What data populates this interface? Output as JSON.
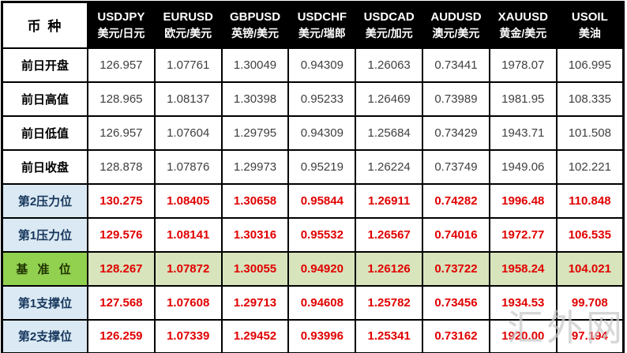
{
  "watermark": "汇外网",
  "colors": {
    "header_bg": "#000000",
    "header_text": "#FFFFFF",
    "border": "#000000",
    "label_text": "#000000",
    "plain_value_text": "#3F3F3F",
    "level_label_bg": "#DAE9F3",
    "level_label_text": "#17375D",
    "level_value_text": "#E10000",
    "pivot_label_bg": "#92D050",
    "pivot_label_text": "#1F3300",
    "pivot_row_bg": "#D7E4BC",
    "watermark_color": "#C9C9C9"
  },
  "chart_data": {
    "type": "table",
    "corner_label": "币 种",
    "columns": [
      {
        "symbol": "USDJPY",
        "name": "美元/日元"
      },
      {
        "symbol": "EURUSD",
        "name": "欧元/美元"
      },
      {
        "symbol": "GBPUSD",
        "name": "英镑/美元"
      },
      {
        "symbol": "USDCHF",
        "name": "美元/瑞郎"
      },
      {
        "symbol": "USDCAD",
        "name": "美元/加元"
      },
      {
        "symbol": "AUDUSD",
        "name": "澳元/美元"
      },
      {
        "symbol": "XAUUSD",
        "name": "黄金/美元"
      },
      {
        "symbol": "USOIL",
        "name": "美油"
      }
    ],
    "rows": [
      {
        "label": "前日开盘",
        "type": "plain",
        "values": [
          "126.957",
          "1.07761",
          "1.30049",
          "0.94309",
          "1.26063",
          "0.73441",
          "1978.07",
          "106.995"
        ]
      },
      {
        "label": "前日高值",
        "type": "plain",
        "values": [
          "128.965",
          "1.08137",
          "1.30398",
          "0.95233",
          "1.26469",
          "0.73989",
          "1981.95",
          "108.335"
        ]
      },
      {
        "label": "前日低值",
        "type": "plain",
        "values": [
          "126.957",
          "1.07604",
          "1.29795",
          "0.94309",
          "1.25684",
          "0.73429",
          "1943.71",
          "101.508"
        ]
      },
      {
        "label": "前日收盘",
        "type": "plain",
        "values": [
          "128.878",
          "1.07876",
          "1.29973",
          "0.95219",
          "1.26224",
          "0.73749",
          "1949.06",
          "102.221"
        ]
      },
      {
        "label": "第2压力位",
        "type": "level",
        "values": [
          "130.275",
          "1.08405",
          "1.30658",
          "0.95844",
          "1.26911",
          "0.74282",
          "1996.48",
          "110.848"
        ]
      },
      {
        "label": "第1压力位",
        "type": "level",
        "values": [
          "129.576",
          "1.08141",
          "1.30316",
          "0.95532",
          "1.26567",
          "0.74016",
          "1972.77",
          "106.535"
        ]
      },
      {
        "label": "基 准 位",
        "type": "pivot",
        "values": [
          "128.267",
          "1.07872",
          "1.30055",
          "0.94920",
          "1.26126",
          "0.73722",
          "1958.24",
          "104.021"
        ]
      },
      {
        "label": "第1支撑位",
        "type": "level",
        "values": [
          "127.568",
          "1.07608",
          "1.29713",
          "0.94608",
          "1.25782",
          "0.73456",
          "1934.53",
          "99.708"
        ]
      },
      {
        "label": "第2支撑位",
        "type": "level",
        "values": [
          "126.259",
          "1.07339",
          "1.29452",
          "0.93996",
          "1.25341",
          "0.73162",
          "1920.00",
          "97.194"
        ]
      }
    ]
  }
}
